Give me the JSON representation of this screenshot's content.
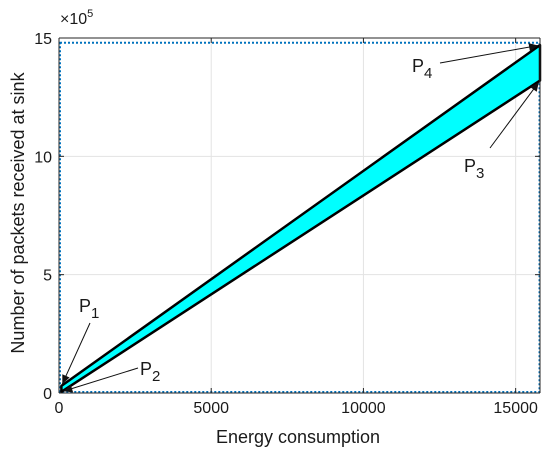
{
  "chart_data": {
    "type": "area",
    "title": "",
    "xlabel": "Energy consumption",
    "ylabel": "Number of packets received at sink",
    "xlim": [
      0,
      15800
    ],
    "ylim": [
      0,
      15
    ],
    "y_multiplier_label": "×10",
    "y_multiplier_exponent": "5",
    "xticks": [
      {
        "value": 0,
        "label": "0"
      },
      {
        "value": 5000,
        "label": "5000"
      },
      {
        "value": 10000,
        "label": "10000"
      },
      {
        "value": 15000,
        "label": "15000"
      }
    ],
    "yticks": [
      {
        "value": 0,
        "label": "0"
      },
      {
        "value": 5,
        "label": "5"
      },
      {
        "value": 10,
        "label": "10"
      },
      {
        "value": 15,
        "label": "15"
      }
    ],
    "grid": true,
    "fill_color": "#00ffff",
    "edge_color": "#000000",
    "points": [
      {
        "name": "P",
        "sub": "1",
        "x": 80,
        "y": 0.3
      },
      {
        "name": "P",
        "sub": "2",
        "x": 80,
        "y": 0.05
      },
      {
        "name": "P",
        "sub": "3",
        "x": 15800,
        "y": 13.2
      },
      {
        "name": "P",
        "sub": "4",
        "x": 15800,
        "y": 14.7
      }
    ],
    "region": [
      {
        "x": 80,
        "y": 0.3
      },
      {
        "x": 15800,
        "y": 14.7
      },
      {
        "x": 15800,
        "y": 13.2
      },
      {
        "x": 80,
        "y": 0.05
      }
    ],
    "bounding_box": {
      "x": [
        0,
        15800
      ],
      "y": [
        0,
        14.8
      ]
    },
    "bounding_box_color": "#0072bd"
  }
}
